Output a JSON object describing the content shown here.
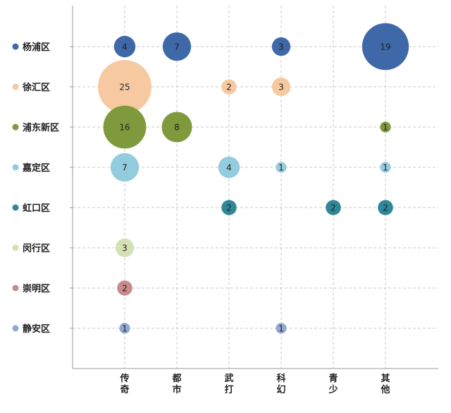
{
  "chart_data": {
    "type": "bubble-matrix",
    "title": "",
    "xlabel": "",
    "ylabel": "",
    "grid": true,
    "rows": [
      {
        "name": "杨浦区",
        "color": "#3E68A8"
      },
      {
        "name": "徐汇区",
        "color": "#F7C9A1"
      },
      {
        "name": "浦东新区",
        "color": "#7E9A3C"
      },
      {
        "name": "嘉定区",
        "color": "#93CCDD"
      },
      {
        "name": "虹口区",
        "color": "#2F8798"
      },
      {
        "name": "闵行区",
        "color": "#D4E0B5"
      },
      {
        "name": "崇明区",
        "color": "#C98A8A"
      },
      {
        "name": "静安区",
        "color": "#93A8D0"
      }
    ],
    "columns": [
      {
        "name": "传奇",
        "chars": [
          "传",
          "奇"
        ]
      },
      {
        "name": "都市",
        "chars": [
          "都",
          "市"
        ]
      },
      {
        "name": "武打",
        "chars": [
          "武",
          "打"
        ]
      },
      {
        "name": "科幻",
        "chars": [
          "科",
          "幻"
        ]
      },
      {
        "name": "青少",
        "chars": [
          "青",
          "少"
        ]
      },
      {
        "name": "其他",
        "chars": [
          "其",
          "他"
        ]
      }
    ],
    "points": [
      {
        "row": 0,
        "col": 0,
        "value": 4
      },
      {
        "row": 0,
        "col": 1,
        "value": 7
      },
      {
        "row": 0,
        "col": 3,
        "value": 3
      },
      {
        "row": 0,
        "col": 5,
        "value": 19
      },
      {
        "row": 1,
        "col": 0,
        "value": 25
      },
      {
        "row": 1,
        "col": 2,
        "value": 2
      },
      {
        "row": 1,
        "col": 3,
        "value": 3
      },
      {
        "row": 2,
        "col": 0,
        "value": 16
      },
      {
        "row": 2,
        "col": 1,
        "value": 8
      },
      {
        "row": 2,
        "col": 5,
        "value": 1
      },
      {
        "row": 3,
        "col": 0,
        "value": 7
      },
      {
        "row": 3,
        "col": 2,
        "value": 4
      },
      {
        "row": 3,
        "col": 3,
        "value": 1
      },
      {
        "row": 3,
        "col": 5,
        "value": 1
      },
      {
        "row": 4,
        "col": 2,
        "value": 2
      },
      {
        "row": 4,
        "col": 4,
        "value": 2
      },
      {
        "row": 4,
        "col": 5,
        "value": 2
      },
      {
        "row": 5,
        "col": 0,
        "value": 3
      },
      {
        "row": 6,
        "col": 0,
        "value": 2
      },
      {
        "row": 7,
        "col": 0,
        "value": 1
      },
      {
        "row": 7,
        "col": 3,
        "value": 1
      }
    ]
  }
}
